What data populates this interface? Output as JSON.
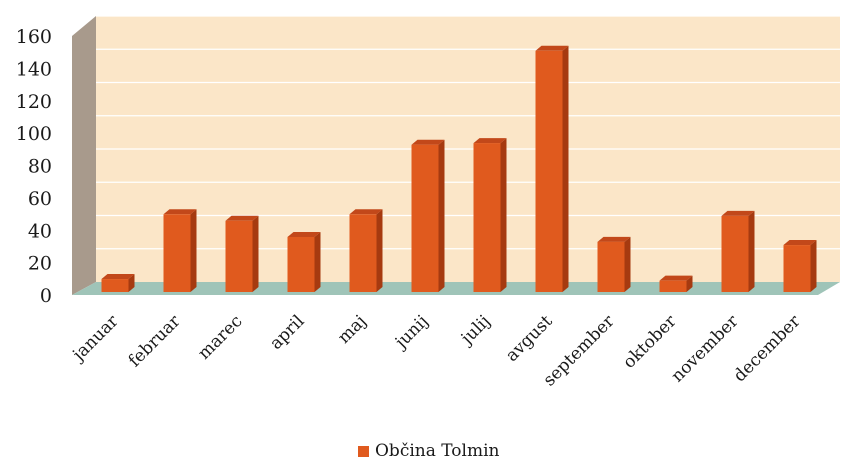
{
  "chart_data": {
    "type": "bar",
    "categories": [
      "januar",
      "februar",
      "marec",
      "april",
      "maj",
      "junij",
      "julij",
      "avgust",
      "september",
      "oktober",
      "november",
      "december"
    ],
    "series": [
      {
        "name": "Občina Tolmin",
        "color": "#e05a1e",
        "values": [
          8,
          48,
          44,
          34,
          48,
          91,
          92,
          149,
          31,
          7,
          47,
          29
        ]
      }
    ],
    "ylim": [
      0,
      160
    ],
    "yticks": [
      0,
      20,
      40,
      60,
      80,
      100,
      120,
      140,
      160
    ],
    "grid": true,
    "legend": "bottom",
    "style": "3d-column",
    "colors": {
      "bar_front": "#e05a1e",
      "bar_side": "#a63a10",
      "bar_top": "#c2481a",
      "wall": "#fbe6c8",
      "side_wall": "#a89a8c",
      "floor": "#9fc4b8"
    }
  },
  "legend": {
    "label": "Občina Tolmin"
  }
}
